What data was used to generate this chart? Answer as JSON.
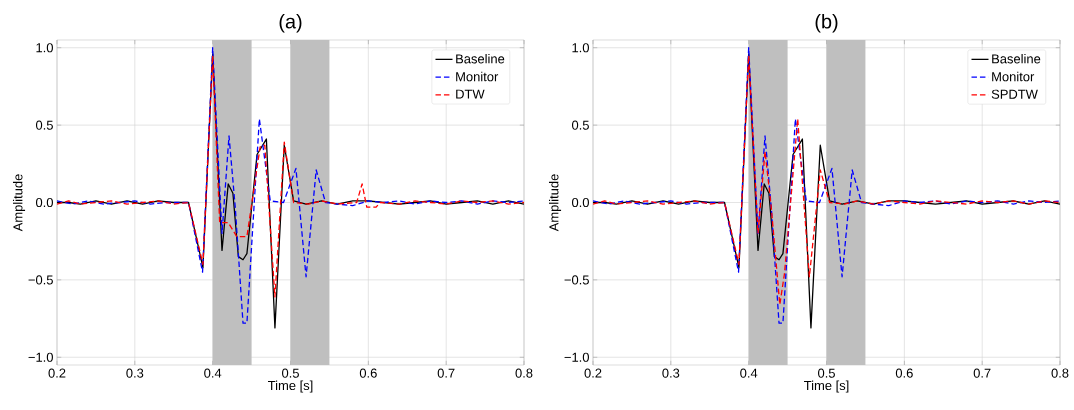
{
  "chart_data": [
    {
      "type": "line",
      "title": "(a)",
      "xlabel": "Time [s]",
      "ylabel": "Amplitude",
      "xlim": [
        0.2,
        0.8
      ],
      "ylim": [
        -1.05,
        1.05
      ],
      "xticks": [
        0.2,
        0.3,
        0.4,
        0.5,
        0.6,
        0.7,
        0.8
      ],
      "yticks": [
        {
          "value": -1.0,
          "label": "−1.0"
        },
        {
          "value": -0.5,
          "label": "−0.5"
        },
        {
          "value": 0.0,
          "label": "0.0"
        },
        {
          "value": 0.5,
          "label": "0.5"
        },
        {
          "value": 1.0,
          "label": "1.0"
        }
      ],
      "grid": true,
      "legend": "top right",
      "bands": [
        {
          "axis": "x",
          "from": 0.4,
          "to": 0.45,
          "color": "#bfbfbf"
        },
        {
          "axis": "x",
          "from": 0.5,
          "to": 0.55,
          "color": "#bfbfbf"
        }
      ],
      "series": [
        {
          "name": "Baseline",
          "color": "#000000",
          "line_style": "solid",
          "x": [
            0.2,
            0.215,
            0.23,
            0.25,
            0.27,
            0.29,
            0.31,
            0.33,
            0.35,
            0.369,
            0.3875,
            0.4,
            0.412,
            0.42,
            0.426,
            0.433,
            0.439,
            0.444,
            0.457,
            0.469,
            0.48,
            0.492,
            0.504,
            0.52,
            0.54,
            0.56,
            0.58,
            0.6,
            0.62,
            0.64,
            0.66,
            0.68,
            0.7,
            0.72,
            0.74,
            0.76,
            0.78,
            0.8
          ],
          "values": [
            0,
            0,
            -0.01,
            0.01,
            -0.01,
            0.01,
            -0.01,
            0.01,
            0,
            0,
            -0.42,
            0.96,
            -0.31,
            0.12,
            0.06,
            -0.35,
            -0.37,
            -0.33,
            0.31,
            0.41,
            -0.81,
            0.37,
            0.01,
            -0.01,
            0.01,
            -0.01,
            0.01,
            0.01,
            0,
            -0.01,
            0,
            0.01,
            -0.01,
            0,
            0.01,
            -0.01,
            0.01,
            -0.01
          ]
        },
        {
          "name": "Monitor",
          "color": "#0000ff",
          "line_style": "dashed",
          "x": [
            0.2,
            0.22,
            0.24,
            0.26,
            0.28,
            0.3,
            0.32,
            0.34,
            0.369,
            0.387,
            0.4,
            0.412,
            0.421,
            0.429,
            0.439,
            0.444,
            0.46,
            0.474,
            0.491,
            0.507,
            0.52,
            0.533,
            0.545,
            0.56,
            0.58,
            0.6,
            0.62,
            0.64,
            0.66,
            0.68,
            0.7,
            0.72,
            0.74,
            0.76,
            0.78,
            0.8
          ],
          "values": [
            0.01,
            -0.01,
            0.01,
            -0.01,
            0,
            0.01,
            -0.01,
            0,
            0,
            -0.45,
            1.0,
            -0.2,
            0.43,
            -0.03,
            -0.78,
            -0.78,
            0.54,
            0.01,
            0,
            0.22,
            -0.48,
            0.21,
            0,
            -0.01,
            -0.02,
            0.01,
            0,
            0.01,
            -0.01,
            0.01,
            0,
            0.01,
            -0.01,
            0.01,
            0,
            0.01
          ]
        },
        {
          "name": "DTW",
          "color": "#ff0000",
          "line_style": "dashed",
          "x": [
            0.2,
            0.215,
            0.23,
            0.25,
            0.27,
            0.29,
            0.31,
            0.33,
            0.35,
            0.369,
            0.3875,
            0.4,
            0.409,
            0.42,
            0.431,
            0.444,
            0.461,
            0.467,
            0.48,
            0.492,
            0.504,
            0.523,
            0.54,
            0.56,
            0.585,
            0.592,
            0.598,
            0.61,
            0.615,
            0.64,
            0.66,
            0.68,
            0.7,
            0.72,
            0.74,
            0.76,
            0.78,
            0.8
          ],
          "values": [
            -0.01,
            0.01,
            -0.01,
            0,
            0.01,
            -0.01,
            0,
            0.01,
            -0.01,
            0,
            -0.4,
            0.95,
            -0.13,
            -0.13,
            -0.22,
            -0.22,
            0.36,
            0.37,
            -0.61,
            0.39,
            0,
            -0.01,
            0.01,
            -0.01,
            0,
            0.12,
            -0.03,
            -0.03,
            0,
            -0.01,
            0.01,
            0,
            -0.01,
            0.01,
            0,
            0.01,
            -0.01,
            0
          ]
        }
      ]
    },
    {
      "type": "line",
      "title": "(b)",
      "xlabel": "Time [s]",
      "ylabel": "Amplitude",
      "xlim": [
        0.2,
        0.8
      ],
      "ylim": [
        -1.05,
        1.05
      ],
      "xticks": [
        0.2,
        0.3,
        0.4,
        0.5,
        0.6,
        0.7,
        0.8
      ],
      "yticks": [
        {
          "value": -1.0,
          "label": "−1.0"
        },
        {
          "value": -0.5,
          "label": "−0.5"
        },
        {
          "value": 0.0,
          "label": "0.0"
        },
        {
          "value": 0.5,
          "label": "0.5"
        },
        {
          "value": 1.0,
          "label": "1.0"
        }
      ],
      "grid": true,
      "legend": "top right",
      "bands": [
        {
          "axis": "x",
          "from": 0.4,
          "to": 0.45,
          "color": "#bfbfbf"
        },
        {
          "axis": "x",
          "from": 0.5,
          "to": 0.55,
          "color": "#bfbfbf"
        }
      ],
      "series": [
        {
          "name": "Baseline",
          "color": "#000000",
          "line_style": "solid",
          "x": [
            0.2,
            0.215,
            0.23,
            0.25,
            0.27,
            0.29,
            0.31,
            0.33,
            0.35,
            0.369,
            0.3875,
            0.4,
            0.412,
            0.42,
            0.426,
            0.433,
            0.439,
            0.444,
            0.457,
            0.469,
            0.48,
            0.492,
            0.504,
            0.52,
            0.54,
            0.56,
            0.58,
            0.6,
            0.62,
            0.64,
            0.66,
            0.68,
            0.7,
            0.72,
            0.74,
            0.76,
            0.78,
            0.8
          ],
          "values": [
            0,
            0,
            -0.01,
            0.01,
            -0.01,
            0.01,
            -0.01,
            0.01,
            0,
            0,
            -0.42,
            0.96,
            -0.31,
            0.12,
            0.06,
            -0.35,
            -0.37,
            -0.33,
            0.31,
            0.41,
            -0.81,
            0.37,
            0.01,
            -0.01,
            0.01,
            -0.01,
            0.01,
            0.01,
            0,
            -0.01,
            0,
            0.01,
            -0.01,
            0,
            0.01,
            -0.01,
            0.01,
            -0.01
          ]
        },
        {
          "name": "Monitor",
          "color": "#0000ff",
          "line_style": "dashed",
          "x": [
            0.2,
            0.22,
            0.24,
            0.26,
            0.28,
            0.3,
            0.32,
            0.34,
            0.369,
            0.387,
            0.4,
            0.412,
            0.421,
            0.429,
            0.439,
            0.444,
            0.46,
            0.474,
            0.491,
            0.507,
            0.52,
            0.533,
            0.545,
            0.56,
            0.58,
            0.6,
            0.62,
            0.64,
            0.66,
            0.68,
            0.7,
            0.72,
            0.74,
            0.76,
            0.78,
            0.8
          ],
          "values": [
            0.01,
            -0.01,
            0.01,
            -0.01,
            0,
            0.01,
            -0.01,
            0,
            0,
            -0.45,
            1.0,
            -0.2,
            0.43,
            -0.03,
            -0.78,
            -0.78,
            0.54,
            0.01,
            0,
            0.22,
            -0.48,
            0.21,
            0,
            -0.01,
            -0.02,
            0.01,
            0,
            0.01,
            -0.01,
            0.01,
            0,
            0.01,
            -0.01,
            0.01,
            0,
            0.01
          ]
        },
        {
          "name": "SPDTW",
          "color": "#ff0000",
          "line_style": "dashed",
          "x": [
            0.2,
            0.215,
            0.23,
            0.25,
            0.27,
            0.29,
            0.31,
            0.33,
            0.35,
            0.369,
            0.3875,
            0.4,
            0.412,
            0.421,
            0.429,
            0.44,
            0.446,
            0.463,
            0.478,
            0.492,
            0.504,
            0.523,
            0.54,
            0.56,
            0.58,
            0.6,
            0.62,
            0.64,
            0.66,
            0.68,
            0.7,
            0.72,
            0.74,
            0.76,
            0.78,
            0.8
          ],
          "values": [
            -0.01,
            0.01,
            -0.01,
            0,
            0.01,
            -0.01,
            0,
            0.01,
            -0.01,
            0,
            -0.4,
            0.95,
            -0.2,
            0.33,
            -0.03,
            -0.66,
            -0.46,
            0.54,
            -0.48,
            0.21,
            0,
            -0.01,
            0.01,
            -0.01,
            0.01,
            0,
            -0.01,
            0.01,
            0,
            -0.01,
            0.01,
            0,
            0.01,
            -0.01,
            0.01,
            0
          ]
        }
      ]
    }
  ]
}
